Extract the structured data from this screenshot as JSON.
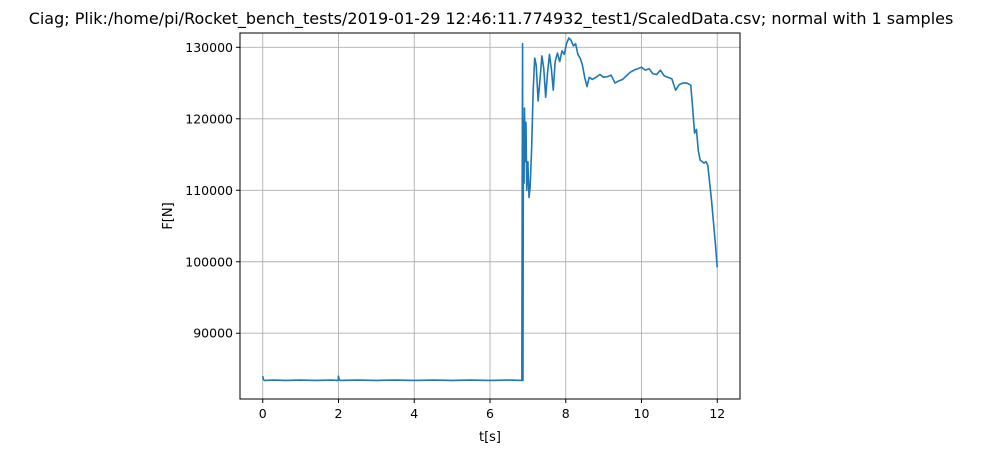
{
  "chart_data": {
    "type": "line",
    "title": "Ciag; Plik:/home/pi/Rocket_bench_tests/2019-01-29 12:46:11.774932_test1/ScaledData.csv; normal with 1 samples",
    "xlabel": "t[s]",
    "ylabel": "F[N]",
    "xlim": [
      -0.6,
      12.6
    ],
    "ylim": [
      80800,
      132000
    ],
    "x_ticks": [
      0,
      2,
      4,
      6,
      8,
      10,
      12
    ],
    "x_tick_labels": [
      "0",
      "2",
      "4",
      "6",
      "8",
      "10",
      "12"
    ],
    "y_ticks": [
      90000,
      100000,
      110000,
      120000,
      130000
    ],
    "y_tick_labels": [
      "90000",
      "100000",
      "110000",
      "120000",
      "130000"
    ],
    "grid": true,
    "legend": "none",
    "colors": {
      "line": "#1f77b4",
      "grid": "#b0b0b0",
      "axes": "#000000"
    },
    "series": [
      {
        "x": [
          0,
          0.02,
          0.05,
          0.3,
          0.6,
          1.0,
          1.4,
          1.8,
          1.99,
          2.0,
          2.02,
          2.05,
          2.5,
          3.0,
          3.5,
          4.0,
          4.5,
          5.0,
          5.5,
          6.0,
          6.5,
          6.84,
          6.85,
          6.86,
          6.87,
          6.88,
          6.89,
          6.9,
          6.91,
          6.93,
          6.95,
          6.97,
          7.0,
          7.03,
          7.06,
          7.1,
          7.14,
          7.18,
          7.22,
          7.27,
          7.32,
          7.37,
          7.42,
          7.47,
          7.52,
          7.57,
          7.62,
          7.67,
          7.72,
          7.78,
          7.84,
          7.9,
          7.96,
          8.02,
          8.08,
          8.14,
          8.2,
          8.26,
          8.32,
          8.38,
          8.44,
          8.5,
          8.56,
          8.62,
          8.7,
          8.8,
          8.9,
          9.0,
          9.1,
          9.2,
          9.3,
          9.4,
          9.5,
          9.6,
          9.7,
          9.8,
          9.9,
          10.0,
          10.1,
          10.2,
          10.3,
          10.4,
          10.5,
          10.6,
          10.7,
          10.8,
          10.9,
          11.0,
          11.1,
          11.2,
          11.3,
          11.35,
          11.4,
          11.45,
          11.5,
          11.55,
          11.6,
          11.65,
          11.7,
          11.75,
          11.8,
          11.85,
          11.9,
          11.95,
          12.0
        ],
        "y": [
          84000,
          83500,
          83400,
          83450,
          83400,
          83450,
          83400,
          83450,
          83400,
          84000,
          83500,
          83400,
          83450,
          83400,
          83450,
          83400,
          83450,
          83400,
          83450,
          83400,
          83450,
          83400,
          111000,
          130500,
          83400,
          114000,
          120000,
          111000,
          121500,
          114000,
          119500,
          110000,
          114000,
          109000,
          110500,
          116000,
          124000,
          128500,
          127500,
          122500,
          125500,
          128800,
          127000,
          123000,
          126500,
          129000,
          127000,
          124000,
          128000,
          129200,
          128000,
          129500,
          129000,
          130500,
          131300,
          131000,
          130200,
          130500,
          129000,
          128500,
          127500,
          125800,
          124500,
          125800,
          125500,
          125800,
          126200,
          125800,
          125900,
          126100,
          125000,
          125300,
          125500,
          126000,
          126500,
          126800,
          127000,
          127200,
          126800,
          127000,
          126300,
          126200,
          126800,
          126000,
          125800,
          125600,
          124000,
          124800,
          125000,
          125000,
          124700,
          121500,
          118000,
          118500,
          115500,
          114200,
          114000,
          113800,
          114000,
          113500,
          111000,
          108500,
          105500,
          102500,
          99200
        ]
      }
    ]
  }
}
